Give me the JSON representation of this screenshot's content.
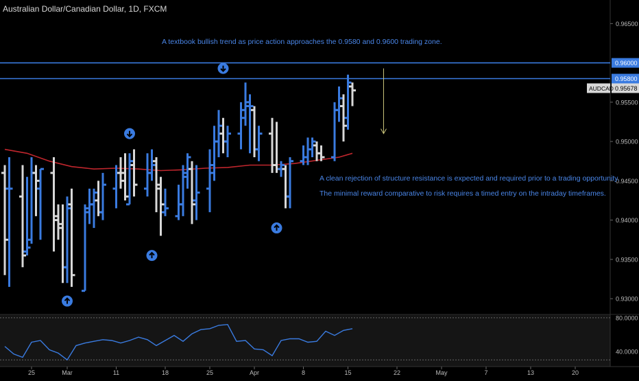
{
  "title": "Australian Dollar/Canadian Dollar, 1D, FXCM",
  "annotations": {
    "top": "A textbook bullish trend as price action approaches the 0.9580 and 0.9600 trading zone.",
    "right1": "A clean rejection of structure resistance is expected and required prior to a trading opportunity.",
    "right2": "The minimal reward comparative to risk requires a timed entry on the intraday timeframes."
  },
  "colors": {
    "bull": "#3a7be0",
    "bear": "#d8d8d8",
    "ma": "#c0262d",
    "level_line": "#3a7be0",
    "arrow_line": "#c8c27a",
    "rsi": "#3a7be0",
    "badge": "#3a7be0",
    "current_badge": "#d8d8d8"
  },
  "chart_data": [
    {
      "type": "ohlc",
      "symbol": "AUDCAD",
      "price_axis": {
        "ylim": [
          0.928,
          0.968
        ],
        "ticks": [
          "0.96500",
          "0.95500",
          "0.95000",
          "0.94500",
          "0.94000",
          "0.93500",
          "0.93000"
        ]
      },
      "levels": [
        {
          "value": 0.96,
          "label": "0.96000"
        },
        {
          "value": 0.958,
          "label": "0.95800"
        }
      ],
      "current": {
        "symbol": "AUDCAD",
        "value": 0.95678,
        "label": "0.95678"
      },
      "bars": [
        {
          "d": 0,
          "o": 0.946,
          "h": 0.947,
          "l": 0.933,
          "c": 0.9375
        },
        {
          "d": 1,
          "o": 0.944,
          "h": 0.948,
          "l": 0.9315,
          "c": 0.944
        },
        {
          "d": 4,
          "o": 0.943,
          "h": 0.947,
          "l": 0.934,
          "c": 0.9355
        },
        {
          "d": 5,
          "o": 0.936,
          "h": 0.9455,
          "l": 0.9355,
          "c": 0.9365
        },
        {
          "d": 6,
          "o": 0.9375,
          "h": 0.948,
          "l": 0.937,
          "c": 0.946
        },
        {
          "d": 7,
          "o": 0.946,
          "h": 0.947,
          "l": 0.9405,
          "c": 0.945
        },
        {
          "d": 8,
          "o": 0.944,
          "h": 0.9465,
          "l": 0.9375,
          "c": 0.9465
        },
        {
          "d": 11,
          "o": 0.946,
          "h": 0.948,
          "l": 0.936,
          "c": 0.9405
        },
        {
          "d": 12,
          "o": 0.94,
          "h": 0.942,
          "l": 0.9375,
          "c": 0.939
        },
        {
          "d": 13,
          "o": 0.9395,
          "h": 0.942,
          "l": 0.932,
          "c": 0.934
        },
        {
          "d": 14,
          "o": 0.934,
          "h": 0.943,
          "l": 0.932,
          "c": 0.9415
        },
        {
          "d": 15,
          "o": 0.942,
          "h": 0.944,
          "l": 0.9315,
          "c": 0.933
        },
        {
          "d": 18,
          "o": 0.931,
          "h": 0.942,
          "l": 0.931,
          "c": 0.941
        },
        {
          "d": 19,
          "o": 0.9415,
          "h": 0.944,
          "l": 0.9395,
          "c": 0.942
        },
        {
          "d": 20,
          "o": 0.942,
          "h": 0.944,
          "l": 0.939,
          "c": 0.9435
        },
        {
          "d": 21,
          "o": 0.9425,
          "h": 0.945,
          "l": 0.9405,
          "c": 0.941
        },
        {
          "d": 22,
          "o": 0.941,
          "h": 0.946,
          "l": 0.94,
          "c": 0.9445
        },
        {
          "d": 25,
          "o": 0.944,
          "h": 0.947,
          "l": 0.9415,
          "c": 0.946
        },
        {
          "d": 26,
          "o": 0.946,
          "h": 0.948,
          "l": 0.944,
          "c": 0.945
        },
        {
          "d": 27,
          "o": 0.946,
          "h": 0.9485,
          "l": 0.9425,
          "c": 0.943
        },
        {
          "d": 28,
          "o": 0.942,
          "h": 0.9485,
          "l": 0.942,
          "c": 0.9475
        },
        {
          "d": 29,
          "o": 0.947,
          "h": 0.949,
          "l": 0.943,
          "c": 0.9445
        },
        {
          "d": 32,
          "o": 0.944,
          "h": 0.9485,
          "l": 0.943,
          "c": 0.946
        },
        {
          "d": 33,
          "o": 0.946,
          "h": 0.949,
          "l": 0.945,
          "c": 0.947
        },
        {
          "d": 34,
          "o": 0.9475,
          "h": 0.948,
          "l": 0.941,
          "c": 0.9445
        },
        {
          "d": 35,
          "o": 0.944,
          "h": 0.9455,
          "l": 0.938,
          "c": 0.942
        },
        {
          "d": 36,
          "o": 0.941,
          "h": 0.944,
          "l": 0.9405,
          "c": 0.9415
        },
        {
          "d": 39,
          "o": 0.9405,
          "h": 0.9445,
          "l": 0.94,
          "c": 0.942
        },
        {
          "d": 40,
          "o": 0.942,
          "h": 0.947,
          "l": 0.9405,
          "c": 0.946
        },
        {
          "d": 41,
          "o": 0.9455,
          "h": 0.9485,
          "l": 0.944,
          "c": 0.948
        },
        {
          "d": 42,
          "o": 0.9465,
          "h": 0.9475,
          "l": 0.9395,
          "c": 0.942
        },
        {
          "d": 43,
          "o": 0.9425,
          "h": 0.947,
          "l": 0.94,
          "c": 0.9435
        },
        {
          "d": 46,
          "o": 0.944,
          "h": 0.949,
          "l": 0.941,
          "c": 0.947
        },
        {
          "d": 47,
          "o": 0.946,
          "h": 0.952,
          "l": 0.945,
          "c": 0.95
        },
        {
          "d": 48,
          "o": 0.95,
          "h": 0.954,
          "l": 0.948,
          "c": 0.952
        },
        {
          "d": 49,
          "o": 0.951,
          "h": 0.953,
          "l": 0.9485,
          "c": 0.95
        },
        {
          "d": 50,
          "o": 0.95,
          "h": 0.952,
          "l": 0.948,
          "c": 0.951
        },
        {
          "d": 53,
          "o": 0.951,
          "h": 0.955,
          "l": 0.949,
          "c": 0.954
        },
        {
          "d": 54,
          "o": 0.953,
          "h": 0.9575,
          "l": 0.952,
          "c": 0.955
        },
        {
          "d": 55,
          "o": 0.9545,
          "h": 0.956,
          "l": 0.9485,
          "c": 0.9545
        },
        {
          "d": 56,
          "o": 0.954,
          "h": 0.9545,
          "l": 0.948,
          "c": 0.949
        },
        {
          "d": 57,
          "o": 0.949,
          "h": 0.952,
          "l": 0.9475,
          "c": 0.951
        },
        {
          "d": 60,
          "o": 0.951,
          "h": 0.953,
          "l": 0.946,
          "c": 0.947
        },
        {
          "d": 61,
          "o": 0.947,
          "h": 0.9525,
          "l": 0.946,
          "c": 0.9465
        },
        {
          "d": 62,
          "o": 0.9465,
          "h": 0.9475,
          "l": 0.9455,
          "c": 0.947
        },
        {
          "d": 63,
          "o": 0.9465,
          "h": 0.947,
          "l": 0.9415,
          "c": 0.943
        },
        {
          "d": 64,
          "o": 0.943,
          "h": 0.948,
          "l": 0.9415,
          "c": 0.9475
        },
        {
          "d": 67,
          "o": 0.9475,
          "h": 0.9495,
          "l": 0.947,
          "c": 0.948
        },
        {
          "d": 68,
          "o": 0.948,
          "h": 0.9505,
          "l": 0.947,
          "c": 0.949
        },
        {
          "d": 69,
          "o": 0.949,
          "h": 0.9505,
          "l": 0.948,
          "c": 0.95
        },
        {
          "d": 70,
          "o": 0.9495,
          "h": 0.95,
          "l": 0.9475,
          "c": 0.9485
        },
        {
          "d": 71,
          "o": 0.9485,
          "h": 0.9495,
          "l": 0.9475,
          "c": 0.948
        },
        {
          "d": 74,
          "o": 0.948,
          "h": 0.955,
          "l": 0.9475,
          "c": 0.954
        },
        {
          "d": 75,
          "o": 0.954,
          "h": 0.957,
          "l": 0.9525,
          "c": 0.9555
        },
        {
          "d": 76,
          "o": 0.9545,
          "h": 0.956,
          "l": 0.95,
          "c": 0.952
        },
        {
          "d": 77,
          "o": 0.953,
          "h": 0.9585,
          "l": 0.9515,
          "c": 0.9575
        },
        {
          "d": 78,
          "o": 0.957,
          "h": 0.9575,
          "l": 0.9545,
          "c": 0.9565
        }
      ],
      "moving_average": [
        {
          "d": 0,
          "v": 0.949
        },
        {
          "d": 5,
          "v": 0.9485
        },
        {
          "d": 10,
          "v": 0.9475
        },
        {
          "d": 15,
          "v": 0.9468
        },
        {
          "d": 20,
          "v": 0.9465
        },
        {
          "d": 25,
          "v": 0.9466
        },
        {
          "d": 30,
          "v": 0.9465
        },
        {
          "d": 35,
          "v": 0.9463
        },
        {
          "d": 40,
          "v": 0.9464
        },
        {
          "d": 45,
          "v": 0.9466
        },
        {
          "d": 50,
          "v": 0.9467
        },
        {
          "d": 55,
          "v": 0.947
        },
        {
          "d": 60,
          "v": 0.947
        },
        {
          "d": 65,
          "v": 0.9472
        },
        {
          "d": 70,
          "v": 0.9476
        },
        {
          "d": 75,
          "v": 0.948
        },
        {
          "d": 78,
          "v": 0.9485
        }
      ],
      "markers": [
        {
          "d": 14,
          "price": 0.9297,
          "dir": "up"
        },
        {
          "d": 28,
          "price": 0.951,
          "dir": "down"
        },
        {
          "d": 33,
          "price": 0.9355,
          "dir": "up"
        },
        {
          "d": 49,
          "price": 0.9593,
          "dir": "down"
        },
        {
          "d": 61,
          "price": 0.939,
          "dir": "up"
        }
      ],
      "projection": {
        "d": 85,
        "from": 0.9593,
        "to": 0.951
      },
      "x_axis": {
        "dmax": 135,
        "ticks": [
          {
            "d": 6,
            "label": "25"
          },
          {
            "d": 14,
            "label": "Mar"
          },
          {
            "d": 25,
            "label": "11"
          },
          {
            "d": 36,
            "label": "18"
          },
          {
            "d": 46,
            "label": "25"
          },
          {
            "d": 56,
            "label": "Apr"
          },
          {
            "d": 67,
            "label": "8"
          },
          {
            "d": 77,
            "label": "15"
          },
          {
            "d": 88,
            "label": "22"
          },
          {
            "d": 98,
            "label": "May"
          },
          {
            "d": 108,
            "label": "7"
          },
          {
            "d": 118,
            "label": "13"
          },
          {
            "d": 128,
            "label": "20"
          }
        ]
      }
    },
    {
      "type": "line",
      "name": "oscillator",
      "ylim": [
        22,
        84
      ],
      "ticks": [
        "80.0000",
        "40.0000"
      ],
      "levels": [
        80,
        30
      ],
      "points": [
        {
          "d": 0,
          "v": 46
        },
        {
          "d": 2,
          "v": 37
        },
        {
          "d": 4,
          "v": 33
        },
        {
          "d": 6,
          "v": 51
        },
        {
          "d": 8,
          "v": 53
        },
        {
          "d": 10,
          "v": 42
        },
        {
          "d": 12,
          "v": 38
        },
        {
          "d": 14,
          "v": 30
        },
        {
          "d": 16,
          "v": 47
        },
        {
          "d": 18,
          "v": 50
        },
        {
          "d": 20,
          "v": 52
        },
        {
          "d": 22,
          "v": 54
        },
        {
          "d": 24,
          "v": 53
        },
        {
          "d": 26,
          "v": 50
        },
        {
          "d": 28,
          "v": 53
        },
        {
          "d": 30,
          "v": 57
        },
        {
          "d": 32,
          "v": 54
        },
        {
          "d": 34,
          "v": 47
        },
        {
          "d": 36,
          "v": 53
        },
        {
          "d": 38,
          "v": 59
        },
        {
          "d": 40,
          "v": 52
        },
        {
          "d": 42,
          "v": 61
        },
        {
          "d": 44,
          "v": 66
        },
        {
          "d": 46,
          "v": 67
        },
        {
          "d": 48,
          "v": 71
        },
        {
          "d": 50,
          "v": 72
        },
        {
          "d": 52,
          "v": 52
        },
        {
          "d": 54,
          "v": 53
        },
        {
          "d": 56,
          "v": 43
        },
        {
          "d": 58,
          "v": 42
        },
        {
          "d": 60,
          "v": 35
        },
        {
          "d": 62,
          "v": 53
        },
        {
          "d": 64,
          "v": 55
        },
        {
          "d": 66,
          "v": 55
        },
        {
          "d": 68,
          "v": 51
        },
        {
          "d": 70,
          "v": 52
        },
        {
          "d": 72,
          "v": 64
        },
        {
          "d": 74,
          "v": 59
        },
        {
          "d": 76,
          "v": 65
        },
        {
          "d": 78,
          "v": 67
        }
      ]
    }
  ]
}
